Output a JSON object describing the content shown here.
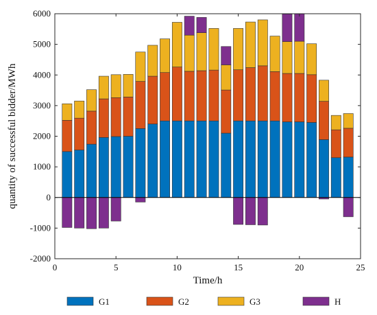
{
  "chart_data": {
    "type": "bar",
    "stacked": true,
    "xlabel": "Time/h",
    "ylabel": "quantity of successful bidder/MWh",
    "xlim": [
      0,
      25
    ],
    "ylim": [
      -2000,
      6000
    ],
    "xticks": [
      0,
      5,
      10,
      15,
      20,
      25
    ],
    "yticks": [
      -2000,
      -1000,
      0,
      1000,
      2000,
      3000,
      4000,
      5000,
      6000
    ],
    "grid": false,
    "legend_position": "bottom",
    "x": [
      1,
      2,
      3,
      4,
      5,
      6,
      7,
      8,
      9,
      10,
      11,
      12,
      13,
      14,
      15,
      16,
      17,
      18,
      19,
      20,
      21,
      22,
      23,
      24
    ],
    "series": [
      {
        "name": "G1",
        "color": "#0072BD",
        "values": [
          1500,
          1550,
          1740,
          1960,
          1990,
          2000,
          2250,
          2400,
          2500,
          2500,
          2500,
          2500,
          2500,
          2100,
          2500,
          2500,
          2500,
          2500,
          2470,
          2470,
          2450,
          1890,
          1300,
          1320
        ]
      },
      {
        "name": "G2",
        "color": "#D95319",
        "values": [
          1020,
          1040,
          1080,
          1260,
          1270,
          1280,
          1540,
          1560,
          1580,
          1760,
          1620,
          1640,
          1660,
          1410,
          1670,
          1740,
          1800,
          1610,
          1580,
          1580,
          1560,
          1250,
          910,
          940
        ]
      },
      {
        "name": "G3",
        "color": "#EDB120",
        "values": [
          540,
          560,
          700,
          740,
          750,
          740,
          960,
          1010,
          1100,
          1460,
          1180,
          1240,
          1360,
          820,
          1350,
          1490,
          1500,
          1160,
          1040,
          1050,
          1010,
          690,
          470,
          480
        ]
      },
      {
        "name": "H",
        "color": "#7E2F8E",
        "values": [
          -980,
          -1000,
          -1020,
          -1000,
          -770,
          0,
          -150,
          0,
          0,
          0,
          620,
          500,
          0,
          600,
          -880,
          -890,
          -900,
          0,
          900,
          900,
          0,
          -50,
          0,
          -630
        ]
      }
    ]
  }
}
